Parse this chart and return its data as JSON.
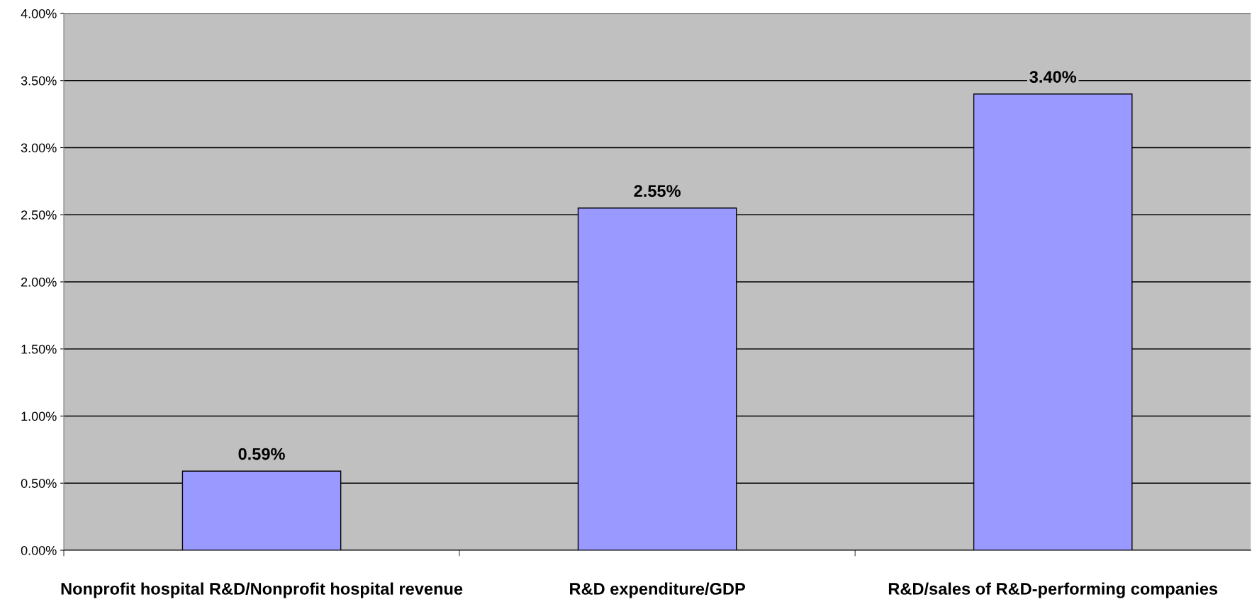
{
  "chart_data": {
    "type": "bar",
    "categories": [
      "Nonprofit hospital R&D/Nonprofit hospital revenue",
      "R&D expenditure/GDP",
      "R&D/sales of R&D-performing companies"
    ],
    "values": [
      0.59,
      2.55,
      3.4
    ],
    "value_labels": [
      "0.59%",
      "2.55%",
      "3.40%"
    ],
    "color": "#9999ff",
    "ylim": [
      0,
      4
    ],
    "yticks": [
      {
        "value": 0,
        "label": "0.00%"
      },
      {
        "value": 0.5,
        "label": "0.50%"
      },
      {
        "value": 1,
        "label": "1.00%"
      },
      {
        "value": 1.5,
        "label": "1.50%"
      },
      {
        "value": 2,
        "label": "2.00%"
      },
      {
        "value": 2.5,
        "label": "2.50%"
      },
      {
        "value": 3,
        "label": "3.00%"
      },
      {
        "value": 3.5,
        "label": "3.50%"
      },
      {
        "value": 4,
        "label": "4.00%"
      }
    ],
    "grid": "y"
  }
}
